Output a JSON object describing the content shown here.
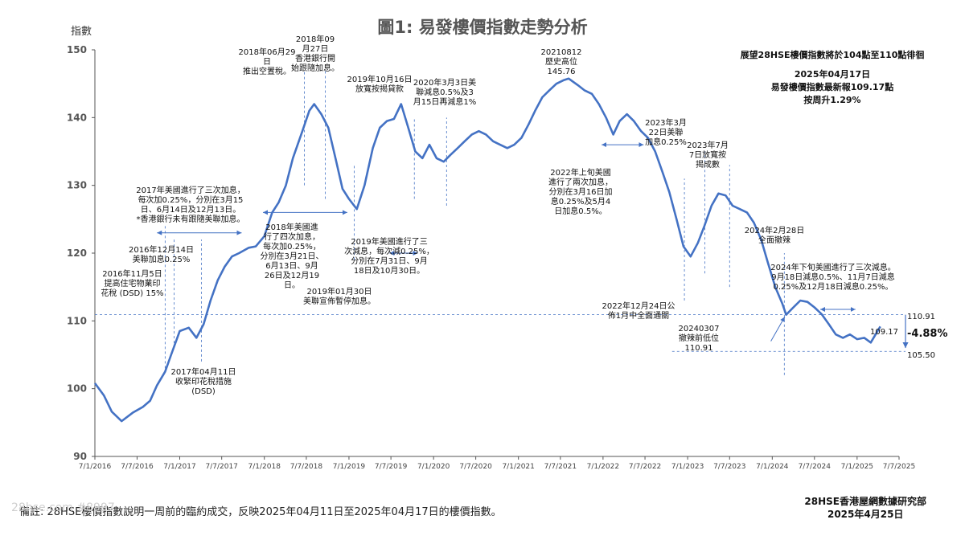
{
  "title": "圖1: 易發樓價指數走勢分析",
  "y_axis_title": "指數",
  "note": "備註: 28HSE樓價指數說明一周前的臨約成交，反映2025年04月11日至2025年04月17日的樓價指數。",
  "footer": {
    "org": "28HSE香港屋網數據研究部",
    "date": "2025年4月25日"
  },
  "watermark": "28hse.com #8997",
  "outlook": {
    "line1": "展望28HSE樓價指數將於104點至110點徘徊",
    "line2": "2025年04月17日",
    "line3": "易發樓價指數最新報109.17點",
    "line4": "按周升1.29%"
  },
  "ref_labels": {
    "upper": "110.91",
    "lower": "105.50",
    "latest": "109.17",
    "change": "-4.88%"
  },
  "annotations": {
    "a1": "2016年11月5日\n提高住宅物業印\n花稅 (DSD) 15%",
    "a2": "2016年12月14日\n美聯加息0.25%",
    "a3": "2017年美國進行了三次加息，\n每次加0.25%，分別在3月15\n日、6月14日及12月13日。\n*香港銀行未有跟隨美聯加息。",
    "a4": "2017年04月11日\n收緊印花稅措施\n(DSD)",
    "a5": "2018年06月29日\n推出空置稅。",
    "a6": "2018年09\n月27日\n香港銀行開\n始跟隨加息。",
    "a7": "2018年美國進\n行了四次加息，\n每次加0.25%，\n分別在3月21日、\n6月13日、9月\n26日及12月19\n日。",
    "a8": "2019年01月30日\n美聯宣佈暫停加息。",
    "a9": "2019年10月16日\n放寬按揭貸款",
    "a10": "2020年3月3日美\n聯減息0.5%及3\n月15日再減息1%",
    "a11": "2019年美國進行了三\n次減息，每次減0.25%，\n分別在7月31日、9月\n18日及10月30日。",
    "a12": "20210812\n歷史高位\n145.76",
    "a13": "2022年上旬美國\n進行了兩次加息，\n分別在3月16日加\n息0.25%及5月4\n日加息0.5%。",
    "a14": "2023年3月\n22日美聯\n加息0.25%",
    "a15": "2023年7月\n7日放寬按\n揭成數",
    "a16": "2022年12月24日公\n佈1月中全面通關",
    "a17": "2024年2月28日\n全面撤辣",
    "a18": "2024年下旬美國進行了三次減息。\n9月18日減息0.5%、11月7日減息\n0.25%及12月18日減息0.25%。",
    "a19": "20240307\n撤辣前低位\n110.91"
  },
  "colors": {
    "line": "#4472c4",
    "axis": "#555555",
    "text": "#222222",
    "arrow": "#4472c4"
  },
  "chart_data": {
    "type": "line",
    "title": "圖1: 易發樓價指數走勢分析",
    "ylabel": "指數",
    "xlabel": "",
    "ylim": [
      90,
      150
    ],
    "yticks": [
      90,
      100,
      110,
      120,
      130,
      140,
      150
    ],
    "xlim": [
      "2016-01-07",
      "2025-07-07"
    ],
    "xtick_labels": [
      "7/1/2016",
      "7/7/2016",
      "7/1/2017",
      "7/7/2017",
      "7/1/2018",
      "7/7/2018",
      "7/1/2019",
      "7/7/2019",
      "7/1/2020",
      "7/7/2020",
      "7/1/2021",
      "7/7/2021",
      "7/1/2022",
      "7/7/2022",
      "7/1/2023",
      "7/7/2023",
      "7/1/2024",
      "7/7/2024",
      "7/1/2025",
      "7/7/2025"
    ],
    "xtick_dates": [
      "2016-01-07",
      "2016-07-07",
      "2017-01-07",
      "2017-07-07",
      "2018-01-07",
      "2018-07-07",
      "2019-01-07",
      "2019-07-07",
      "2020-01-07",
      "2020-07-07",
      "2021-01-07",
      "2021-07-07",
      "2022-01-07",
      "2022-07-07",
      "2023-01-07",
      "2023-07-07",
      "2024-01-07",
      "2024-07-07",
      "2025-01-07",
      "2025-07-07"
    ],
    "grid": false,
    "series": [
      {
        "values_x": [
          "2016-01-07",
          "2016-02-15",
          "2016-03-20",
          "2016-05-01",
          "2016-06-20",
          "2016-08-01",
          "2016-09-01",
          "2016-10-01",
          "2016-11-05",
          "2016-12-01",
          "2017-01-07",
          "2017-02-15",
          "2017-03-20",
          "2017-04-20",
          "2017-05-20",
          "2017-06-20",
          "2017-07-20",
          "2017-08-20",
          "2017-09-20",
          "2017-11-01",
          "2017-12-01",
          "2018-01-07",
          "2018-02-10",
          "2018-03-10",
          "2018-04-10",
          "2018-05-10",
          "2018-06-20",
          "2018-07-20",
          "2018-08-10",
          "2018-09-10",
          "2018-10-10",
          "2018-11-10",
          "2018-12-10",
          "2019-01-07",
          "2019-02-10",
          "2019-03-15",
          "2019-04-20",
          "2019-05-20",
          "2019-06-20",
          "2019-07-20",
          "2019-08-20",
          "2019-09-20",
          "2019-10-20",
          "2019-11-20",
          "2019-12-20",
          "2020-01-20",
          "2020-02-20",
          "2020-03-20",
          "2020-04-20",
          "2020-05-20",
          "2020-06-20",
          "2020-07-20",
          "2020-08-20",
          "2020-09-20",
          "2020-10-20",
          "2020-11-20",
          "2020-12-20",
          "2021-01-20",
          "2021-02-20",
          "2021-03-20",
          "2021-04-20",
          "2021-05-20",
          "2021-06-20",
          "2021-07-20",
          "2021-08-12",
          "2021-09-20",
          "2021-10-20",
          "2021-11-20",
          "2021-12-20",
          "2022-01-20",
          "2022-02-20",
          "2022-03-20",
          "2022-04-20",
          "2022-05-20",
          "2022-06-20",
          "2022-07-20",
          "2022-08-20",
          "2022-09-20",
          "2022-10-20",
          "2022-11-20",
          "2022-12-20",
          "2023-01-20",
          "2023-02-20",
          "2023-03-20",
          "2023-04-20",
          "2023-05-20",
          "2023-06-20",
          "2023-07-20",
          "2023-08-20",
          "2023-09-20",
          "2023-10-20",
          "2023-11-20",
          "2023-12-20",
          "2024-01-20",
          "2024-02-20",
          "2024-03-07",
          "2024-04-07",
          "2024-05-07",
          "2024-06-07",
          "2024-07-07",
          "2024-08-07",
          "2024-09-07",
          "2024-10-07",
          "2024-11-07",
          "2024-12-07",
          "2025-01-07",
          "2025-02-07",
          "2025-03-07",
          "2025-04-17"
        ],
        "values": [
          100.8,
          99.0,
          96.6,
          95.2,
          96.5,
          97.3,
          98.2,
          100.5,
          102.5,
          105.0,
          108.5,
          109.0,
          107.5,
          109.5,
          113.0,
          116.0,
          118.0,
          119.5,
          120.0,
          120.8,
          121.0,
          122.5,
          126.0,
          127.5,
          130.0,
          134.0,
          138.0,
          141.0,
          142.0,
          140.5,
          138.5,
          134.0,
          129.5,
          128.0,
          126.5,
          130.0,
          135.5,
          138.5,
          139.5,
          139.8,
          142.0,
          138.5,
          135.0,
          134.0,
          136.0,
          134.0,
          133.5,
          134.5,
          135.5,
          136.5,
          137.5,
          138.0,
          137.5,
          136.5,
          136.0,
          135.5,
          136.0,
          137.0,
          139.0,
          141.0,
          143.0,
          144.0,
          145.0,
          145.5,
          145.76,
          144.8,
          144.0,
          143.5,
          142.0,
          140.0,
          137.5,
          139.5,
          140.5,
          139.5,
          138.0,
          137.0,
          135.0,
          132.0,
          129.0,
          125.0,
          121.0,
          119.5,
          121.5,
          124.0,
          127.0,
          128.8,
          128.5,
          127.0,
          126.5,
          126.0,
          124.5,
          122.0,
          118.5,
          115.0,
          112.5,
          110.91,
          112.0,
          113.0,
          112.8,
          112.0,
          111.0,
          109.5,
          108.0,
          107.5,
          108.0,
          107.3,
          107.5,
          106.8,
          109.17
        ]
      }
    ]
  }
}
